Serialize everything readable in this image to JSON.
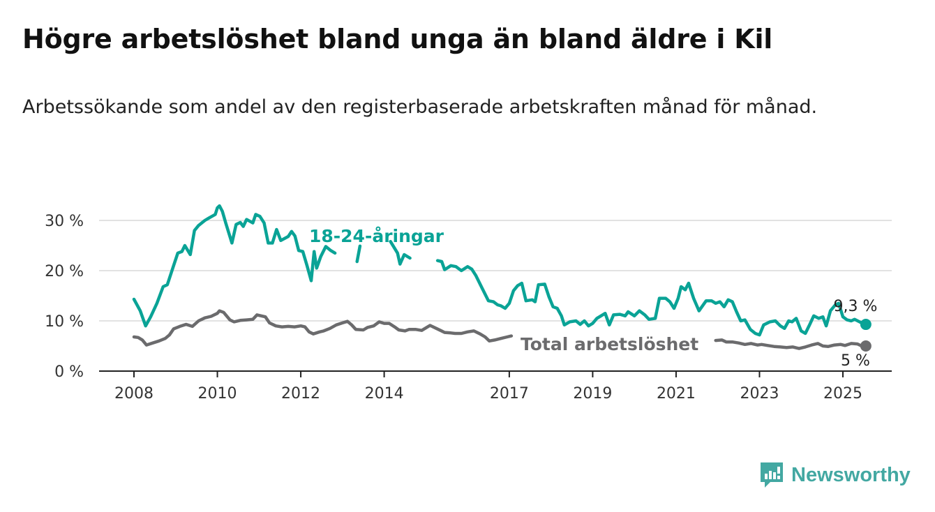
{
  "title": "Högre arbetslöshet bland unga än bland äldre i Kil",
  "subtitle": "Arbetssökande som andel av den registerbaserade arbetskraften månad för månad.",
  "brand": {
    "name": "Newsworthy",
    "icon": "newsworthy-logo-icon",
    "color": "#43a8a2"
  },
  "chart_data": {
    "type": "line",
    "title": "Högre arbetslöshet bland unga än bland äldre i Kil",
    "xlabel": "",
    "ylabel": "",
    "ylim": [
      0,
      33
    ],
    "xlim": [
      2007.7,
      2025.95
    ],
    "yticks": [
      {
        "value": 0,
        "label": "0 %"
      },
      {
        "value": 10,
        "label": "10 %"
      },
      {
        "value": 20,
        "label": "20 %"
      },
      {
        "value": 30,
        "label": "30 %"
      }
    ],
    "xticks": [
      {
        "value": 2008,
        "label": "2008"
      },
      {
        "value": 2010,
        "label": "2010"
      },
      {
        "value": 2012,
        "label": "2012"
      },
      {
        "value": 2014,
        "label": "2014"
      },
      {
        "value": 2017,
        "label": "2017"
      },
      {
        "value": 2019,
        "label": "2019"
      },
      {
        "value": 2021,
        "label": "2021"
      },
      {
        "value": 2023,
        "label": "2023"
      },
      {
        "value": 2025,
        "label": "2025"
      }
    ],
    "grid": true,
    "legend": "inline",
    "series": [
      {
        "name": "18-24-åringar",
        "color": "#0aa396",
        "end_label": "9,3 %",
        "points": [
          [
            2008.0,
            14.3
          ],
          [
            2008.15,
            12.0
          ],
          [
            2008.28,
            9.0
          ],
          [
            2008.4,
            10.8
          ],
          [
            2008.55,
            13.5
          ],
          [
            2008.7,
            16.8
          ],
          [
            2008.8,
            17.2
          ],
          [
            2008.95,
            21.0
          ],
          [
            2009.05,
            23.5
          ],
          [
            2009.15,
            23.8
          ],
          [
            2009.22,
            25.0
          ],
          [
            2009.35,
            23.2
          ],
          [
            2009.45,
            28.0
          ],
          [
            2009.55,
            29.0
          ],
          [
            2009.7,
            30.0
          ],
          [
            2009.8,
            30.5
          ],
          [
            2009.95,
            31.2
          ],
          [
            2010.0,
            32.5
          ],
          [
            2010.05,
            32.9
          ],
          [
            2010.12,
            31.8
          ],
          [
            2010.2,
            29.5
          ],
          [
            2010.35,
            25.5
          ],
          [
            2010.45,
            29.2
          ],
          [
            2010.55,
            29.6
          ],
          [
            2010.62,
            28.8
          ],
          [
            2010.7,
            30.2
          ],
          [
            2010.85,
            29.5
          ],
          [
            2010.92,
            31.2
          ],
          [
            2011.02,
            30.8
          ],
          [
            2011.12,
            29.5
          ],
          [
            2011.22,
            25.5
          ],
          [
            2011.32,
            25.5
          ],
          [
            2011.42,
            28.2
          ],
          [
            2011.52,
            26.0
          ],
          [
            2011.7,
            26.8
          ],
          [
            2011.78,
            27.8
          ],
          [
            2011.86,
            26.9
          ],
          [
            2011.95,
            24.0
          ],
          [
            2012.05,
            23.8
          ],
          [
            2012.15,
            21.0
          ],
          [
            2012.25,
            18.0
          ],
          [
            2012.32,
            23.8
          ],
          [
            2012.38,
            20.5
          ],
          [
            2012.48,
            22.8
          ],
          [
            2012.6,
            24.8
          ],
          [
            2012.72,
            24.0
          ],
          [
            2012.82,
            23.5
          ],
          [
            2012.95,
            24.2
          ],
          [
            2013.1,
            24.0
          ],
          [
            2013.28,
            24.8
          ],
          [
            2013.35,
            21.8
          ],
          [
            2013.42,
            24.9
          ],
          [
            2013.55,
            24.0
          ],
          [
            2013.7,
            25.5
          ],
          [
            2013.85,
            26.0
          ],
          [
            2014.0,
            25.5
          ],
          [
            2014.15,
            25.8
          ],
          [
            2014.32,
            23.5
          ],
          [
            2014.38,
            21.3
          ],
          [
            2014.48,
            23.2
          ],
          [
            2014.62,
            22.5
          ],
          [
            2014.75,
            23.5
          ],
          [
            2014.9,
            24.6
          ],
          [
            2015.05,
            24.2
          ],
          [
            2015.18,
            25.0
          ],
          [
            2015.28,
            22.0
          ],
          [
            2015.38,
            21.8
          ],
          [
            2015.45,
            20.2
          ],
          [
            2015.6,
            21.0
          ],
          [
            2015.72,
            20.8
          ],
          [
            2015.85,
            20.0
          ],
          [
            2016.0,
            20.8
          ],
          [
            2016.1,
            20.3
          ],
          [
            2016.2,
            19.0
          ],
          [
            2016.35,
            16.5
          ],
          [
            2016.5,
            14.0
          ],
          [
            2016.62,
            13.8
          ],
          [
            2016.72,
            13.2
          ],
          [
            2016.8,
            13.0
          ],
          [
            2016.9,
            12.5
          ],
          [
            2017.0,
            13.5
          ],
          [
            2017.1,
            16.0
          ],
          [
            2017.2,
            17.0
          ],
          [
            2017.3,
            17.5
          ],
          [
            2017.4,
            14.0
          ],
          [
            2017.55,
            14.2
          ],
          [
            2017.62,
            13.8
          ],
          [
            2017.7,
            17.2
          ],
          [
            2017.85,
            17.3
          ],
          [
            2017.95,
            14.8
          ],
          [
            2018.05,
            12.8
          ],
          [
            2018.15,
            12.5
          ],
          [
            2018.25,
            11.0
          ],
          [
            2018.32,
            9.2
          ],
          [
            2018.45,
            9.8
          ],
          [
            2018.6,
            10.0
          ],
          [
            2018.7,
            9.3
          ],
          [
            2018.8,
            10.0
          ],
          [
            2018.9,
            9.0
          ],
          [
            2019.0,
            9.5
          ],
          [
            2019.1,
            10.5
          ],
          [
            2019.3,
            11.5
          ],
          [
            2019.4,
            9.2
          ],
          [
            2019.5,
            11.2
          ],
          [
            2019.65,
            11.3
          ],
          [
            2019.78,
            11.0
          ],
          [
            2019.85,
            11.8
          ],
          [
            2020.0,
            11.0
          ],
          [
            2020.12,
            12.0
          ],
          [
            2020.25,
            11.2
          ],
          [
            2020.35,
            10.3
          ],
          [
            2020.5,
            10.5
          ],
          [
            2020.6,
            14.5
          ],
          [
            2020.75,
            14.5
          ],
          [
            2020.85,
            13.8
          ],
          [
            2020.95,
            12.5
          ],
          [
            2021.05,
            14.5
          ],
          [
            2021.12,
            16.8
          ],
          [
            2021.22,
            16.2
          ],
          [
            2021.3,
            17.5
          ],
          [
            2021.42,
            14.5
          ],
          [
            2021.55,
            12.0
          ],
          [
            2021.72,
            14.0
          ],
          [
            2021.85,
            14.0
          ],
          [
            2021.95,
            13.5
          ],
          [
            2022.05,
            13.8
          ],
          [
            2022.15,
            12.8
          ],
          [
            2022.25,
            14.2
          ],
          [
            2022.35,
            13.8
          ],
          [
            2022.45,
            11.8
          ],
          [
            2022.55,
            10.0
          ],
          [
            2022.65,
            10.2
          ],
          [
            2022.78,
            8.3
          ],
          [
            2022.9,
            7.5
          ],
          [
            2023.0,
            7.2
          ],
          [
            2023.1,
            9.2
          ],
          [
            2023.25,
            9.8
          ],
          [
            2023.38,
            10.0
          ],
          [
            2023.5,
            9.0
          ],
          [
            2023.6,
            8.5
          ],
          [
            2023.7,
            10.0
          ],
          [
            2023.78,
            9.8
          ],
          [
            2023.88,
            10.5
          ],
          [
            2024.0,
            8.0
          ],
          [
            2024.1,
            7.5
          ],
          [
            2024.2,
            9.2
          ],
          [
            2024.3,
            11.0
          ],
          [
            2024.42,
            10.5
          ],
          [
            2024.52,
            10.8
          ],
          [
            2024.6,
            9.0
          ],
          [
            2024.7,
            12.0
          ],
          [
            2024.82,
            13.2
          ],
          [
            2024.9,
            13.5
          ],
          [
            2025.0,
            10.8
          ],
          [
            2025.1,
            10.2
          ],
          [
            2025.2,
            10.0
          ],
          [
            2025.28,
            10.3
          ],
          [
            2025.4,
            9.8
          ],
          [
            2025.48,
            9.5
          ],
          [
            2025.55,
            9.3
          ]
        ],
        "gaps": [
          [
            2012.86,
            2013.3
          ],
          [
            2013.48,
            2013.7
          ],
          [
            2013.75,
            2014.1
          ],
          [
            2014.72,
            2015.2
          ]
        ]
      },
      {
        "name": "Total arbetslöshet",
        "color": "#6b6b6d",
        "end_label": "5 %",
        "points": [
          [
            2008.0,
            6.8
          ],
          [
            2008.1,
            6.7
          ],
          [
            2008.2,
            6.2
          ],
          [
            2008.3,
            5.2
          ],
          [
            2008.45,
            5.6
          ],
          [
            2008.6,
            6.0
          ],
          [
            2008.75,
            6.5
          ],
          [
            2008.85,
            7.2
          ],
          [
            2008.95,
            8.4
          ],
          [
            2009.1,
            8.9
          ],
          [
            2009.25,
            9.3
          ],
          [
            2009.4,
            8.9
          ],
          [
            2009.55,
            10.0
          ],
          [
            2009.7,
            10.6
          ],
          [
            2009.85,
            10.9
          ],
          [
            2010.0,
            11.5
          ],
          [
            2010.05,
            12.0
          ],
          [
            2010.15,
            11.7
          ],
          [
            2010.3,
            10.2
          ],
          [
            2010.4,
            9.8
          ],
          [
            2010.55,
            10.1
          ],
          [
            2010.7,
            10.2
          ],
          [
            2010.85,
            10.3
          ],
          [
            2010.95,
            11.2
          ],
          [
            2011.05,
            11.0
          ],
          [
            2011.15,
            10.8
          ],
          [
            2011.25,
            9.6
          ],
          [
            2011.4,
            9.0
          ],
          [
            2011.55,
            8.8
          ],
          [
            2011.7,
            8.9
          ],
          [
            2011.85,
            8.8
          ],
          [
            2012.0,
            9.0
          ],
          [
            2012.1,
            8.8
          ],
          [
            2012.2,
            7.8
          ],
          [
            2012.3,
            7.4
          ],
          [
            2012.45,
            7.8
          ],
          [
            2012.55,
            8.0
          ],
          [
            2012.7,
            8.5
          ],
          [
            2012.85,
            9.2
          ],
          [
            2013.0,
            9.6
          ],
          [
            2013.12,
            9.9
          ],
          [
            2013.22,
            9.2
          ],
          [
            2013.32,
            8.3
          ],
          [
            2013.5,
            8.2
          ],
          [
            2013.6,
            8.7
          ],
          [
            2013.75,
            9.0
          ],
          [
            2013.88,
            9.8
          ],
          [
            2014.0,
            9.5
          ],
          [
            2014.12,
            9.5
          ],
          [
            2014.25,
            8.8
          ],
          [
            2014.35,
            8.2
          ],
          [
            2014.5,
            8.0
          ],
          [
            2014.6,
            8.3
          ],
          [
            2014.75,
            8.3
          ],
          [
            2014.9,
            8.1
          ],
          [
            2015.0,
            8.6
          ],
          [
            2015.1,
            9.1
          ],
          [
            2015.25,
            8.5
          ],
          [
            2015.35,
            8.1
          ],
          [
            2015.45,
            7.7
          ],
          [
            2015.6,
            7.6
          ],
          [
            2015.7,
            7.5
          ],
          [
            2015.85,
            7.5
          ],
          [
            2016.0,
            7.8
          ],
          [
            2016.15,
            8.0
          ],
          [
            2016.3,
            7.4
          ],
          [
            2016.42,
            6.8
          ],
          [
            2016.52,
            6.0
          ],
          [
            2016.65,
            6.2
          ],
          [
            2016.8,
            6.5
          ],
          [
            2016.95,
            6.8
          ],
          [
            2017.05,
            7.0
          ],
          [
            2017.12,
            6.8
          ],
          [
            2021.85,
            6.0
          ],
          [
            2021.95,
            6.1
          ],
          [
            2022.1,
            6.2
          ],
          [
            2022.2,
            5.8
          ],
          [
            2022.35,
            5.8
          ],
          [
            2022.5,
            5.6
          ],
          [
            2022.65,
            5.3
          ],
          [
            2022.8,
            5.5
          ],
          [
            2022.95,
            5.2
          ],
          [
            2023.05,
            5.3
          ],
          [
            2023.2,
            5.1
          ],
          [
            2023.35,
            4.9
          ],
          [
            2023.5,
            4.8
          ],
          [
            2023.65,
            4.7
          ],
          [
            2023.8,
            4.8
          ],
          [
            2023.95,
            4.5
          ],
          [
            2024.1,
            4.8
          ],
          [
            2024.25,
            5.2
          ],
          [
            2024.4,
            5.5
          ],
          [
            2024.52,
            5.0
          ],
          [
            2024.65,
            4.9
          ],
          [
            2024.8,
            5.2
          ],
          [
            2024.95,
            5.3
          ],
          [
            2025.05,
            5.1
          ],
          [
            2025.2,
            5.5
          ],
          [
            2025.35,
            5.4
          ],
          [
            2025.45,
            5.0
          ],
          [
            2025.55,
            5.0
          ]
        ],
        "gaps": [
          [
            2017.1,
            2021.9
          ]
        ]
      }
    ]
  }
}
